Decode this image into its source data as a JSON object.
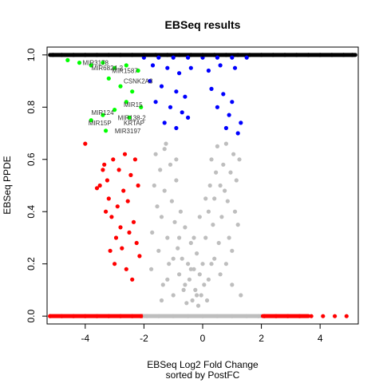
{
  "chart_data": {
    "type": "scatter",
    "title": "EBSeq results",
    "xlabel": "EBSeq Log2 Fold Change",
    "xlabel_sub": "sorted by PostFC",
    "ylabel": "EBSeq PPDE",
    "xlim": [
      -5.3,
      5.3
    ],
    "ylim": [
      -0.03,
      1.03
    ],
    "x_ticks": [
      {
        "value": -4,
        "label": "-4"
      },
      {
        "value": -2,
        "label": "-2"
      },
      {
        "value": 0,
        "label": "0"
      },
      {
        "value": 2,
        "label": "2"
      },
      {
        "value": 4,
        "label": "4"
      }
    ],
    "y_ticks": [
      {
        "value": 0.0,
        "label": "0.0"
      },
      {
        "value": 0.2,
        "label": "0.2"
      },
      {
        "value": 0.4,
        "label": "0.4"
      },
      {
        "value": 0.6,
        "label": "0.6"
      },
      {
        "value": 0.8,
        "label": "0.8"
      },
      {
        "value": 1.0,
        "label": "1.0"
      }
    ],
    "grid": false,
    "legend": "none",
    "colors": {
      "gray": "#bebebe",
      "red": "#ff0000",
      "blue": "#0000ff",
      "green": "#00ff00",
      "black": "#000000"
    },
    "series": [
      {
        "color": "gray",
        "points": [
          [
            -1.9,
            0.0
          ],
          [
            -1.5,
            0.0
          ],
          [
            -1.0,
            0.0
          ],
          [
            -0.5,
            0.0
          ],
          [
            0.0,
            0.0
          ],
          [
            0.5,
            0.0
          ],
          [
            1.0,
            0.0
          ],
          [
            1.5,
            0.0
          ],
          [
            1.9,
            0.0
          ],
          [
            -1.75,
            0.18
          ],
          [
            -1.72,
            0.32
          ],
          [
            -1.65,
            0.5
          ],
          [
            -1.6,
            0.62
          ],
          [
            -1.55,
            0.42
          ],
          [
            -1.5,
            0.25
          ],
          [
            -1.45,
            0.56
          ],
          [
            -1.4,
            0.38
          ],
          [
            -1.35,
            0.12
          ],
          [
            -1.3,
            0.48
          ],
          [
            -1.25,
            0.66
          ],
          [
            -1.2,
            0.3
          ],
          [
            -1.15,
            0.2
          ],
          [
            -1.1,
            0.58
          ],
          [
            -1.05,
            0.44
          ],
          [
            -1.0,
            0.08
          ],
          [
            -0.95,
            0.36
          ],
          [
            -0.9,
            0.52
          ],
          [
            -0.85,
            0.26
          ],
          [
            -0.8,
            0.16
          ],
          [
            -0.75,
            0.4
          ],
          [
            -0.7,
            0.22
          ],
          [
            -0.65,
            0.1
          ],
          [
            -0.6,
            0.34
          ],
          [
            -0.55,
            0.05
          ],
          [
            -0.5,
            0.2
          ],
          [
            -0.45,
            0.14
          ],
          [
            -0.4,
            0.28
          ],
          [
            -0.35,
            0.06
          ],
          [
            -0.3,
            0.18
          ],
          [
            -0.25,
            0.1
          ],
          [
            -0.2,
            0.24
          ],
          [
            -0.15,
            0.04
          ],
          [
            -0.1,
            0.16
          ],
          [
            -0.05,
            0.08
          ],
          [
            0.0,
            0.2
          ],
          [
            0.05,
            0.12
          ],
          [
            0.1,
            0.3
          ],
          [
            0.15,
            0.06
          ],
          [
            0.2,
            0.4
          ],
          [
            0.25,
            0.5
          ],
          [
            0.3,
            0.6
          ],
          [
            0.35,
            0.35
          ],
          [
            0.4,
            0.45
          ],
          [
            0.45,
            0.55
          ],
          [
            0.5,
            0.65
          ],
          [
            0.55,
            0.28
          ],
          [
            0.6,
            0.5
          ],
          [
            0.65,
            0.38
          ],
          [
            0.7,
            0.58
          ],
          [
            0.75,
            0.48
          ],
          [
            0.8,
            0.66
          ],
          [
            0.85,
            0.44
          ],
          [
            0.9,
            0.3
          ],
          [
            0.95,
            0.55
          ],
          [
            1.0,
            0.25
          ],
          [
            1.05,
            0.62
          ],
          [
            1.1,
            0.4
          ],
          [
            1.15,
            0.52
          ],
          [
            1.2,
            0.35
          ],
          [
            1.25,
            0.6
          ],
          [
            -1.2,
            0.14
          ],
          [
            -1.0,
            0.22
          ],
          [
            -0.8,
            0.3
          ],
          [
            -0.6,
            0.12
          ],
          [
            -0.4,
            0.18
          ],
          [
            -0.2,
            0.08
          ],
          [
            0.2,
            0.14
          ],
          [
            0.4,
            0.22
          ],
          [
            0.6,
            0.16
          ],
          [
            0.8,
            0.2
          ],
          [
            1.0,
            0.12
          ],
          [
            -1.4,
            0.06
          ],
          [
            1.3,
            0.08
          ],
          [
            -0.9,
            0.6
          ],
          [
            -1.3,
            0.64
          ],
          [
            0.3,
            0.2
          ],
          [
            -0.3,
            0.3
          ],
          [
            0.1,
            0.45
          ],
          [
            -0.1,
            0.38
          ]
        ]
      },
      {
        "color": "red",
        "points": [
          [
            -5.2,
            0.0
          ],
          [
            -4.8,
            0.0
          ],
          [
            -4.4,
            0.0
          ],
          [
            -4.0,
            0.0
          ],
          [
            -3.6,
            0.0
          ],
          [
            -3.2,
            0.0
          ],
          [
            -2.8,
            0.0
          ],
          [
            -2.4,
            0.0
          ],
          [
            -2.1,
            0.0
          ],
          [
            2.1,
            0.0
          ],
          [
            2.5,
            0.0
          ],
          [
            2.9,
            0.0
          ],
          [
            3.3,
            0.0
          ],
          [
            3.7,
            0.0
          ],
          [
            4.1,
            0.0
          ],
          [
            4.5,
            0.0
          ],
          [
            4.9,
            0.0
          ],
          [
            -4.0,
            0.66
          ],
          [
            -3.6,
            0.49
          ],
          [
            -3.5,
            0.5
          ],
          [
            -3.4,
            0.56
          ],
          [
            -3.35,
            0.58
          ],
          [
            -3.3,
            0.4
          ],
          [
            -3.25,
            0.52
          ],
          [
            -3.2,
            0.45
          ],
          [
            -3.15,
            0.25
          ],
          [
            -3.1,
            0.38
          ],
          [
            -3.05,
            0.6
          ],
          [
            -3.0,
            0.2
          ],
          [
            -2.95,
            0.3
          ],
          [
            -2.9,
            0.42
          ],
          [
            -2.85,
            0.56
          ],
          [
            -2.8,
            0.34
          ],
          [
            -2.75,
            0.26
          ],
          [
            -2.7,
            0.48
          ],
          [
            -2.65,
            0.62
          ],
          [
            -2.6,
            0.18
          ],
          [
            -2.55,
            0.44
          ],
          [
            -2.5,
            0.32
          ],
          [
            -2.45,
            0.54
          ],
          [
            -2.4,
            0.14
          ],
          [
            -2.35,
            0.36
          ],
          [
            -2.3,
            0.6
          ],
          [
            -2.25,
            0.28
          ],
          [
            -2.2,
            0.5
          ],
          [
            -2.15,
            0.23
          ]
        ]
      },
      {
        "color": "blue",
        "points": [
          [
            -2.0,
            0.99
          ],
          [
            -1.5,
            0.99
          ],
          [
            -1.0,
            0.99
          ],
          [
            -0.5,
            0.99
          ],
          [
            0.0,
            0.99
          ],
          [
            0.5,
            0.99
          ],
          [
            1.0,
            0.99
          ],
          [
            1.5,
            0.99
          ],
          [
            -1.7,
            0.96
          ],
          [
            -1.2,
            0.95
          ],
          [
            -0.8,
            0.93
          ],
          [
            -0.4,
            0.95
          ],
          [
            0.2,
            0.94
          ],
          [
            0.6,
            0.96
          ],
          [
            1.1,
            0.95
          ],
          [
            -1.8,
            0.9
          ],
          [
            -1.4,
            0.88
          ],
          [
            -0.9,
            0.86
          ],
          [
            -0.6,
            0.84
          ],
          [
            0.3,
            0.87
          ],
          [
            0.7,
            0.85
          ],
          [
            1.0,
            0.82
          ],
          [
            -1.6,
            0.82
          ],
          [
            -1.1,
            0.8
          ],
          [
            -0.7,
            0.78
          ],
          [
            0.5,
            0.8
          ],
          [
            0.9,
            0.77
          ],
          [
            -1.3,
            0.74
          ],
          [
            -0.9,
            0.72
          ],
          [
            0.8,
            0.72
          ],
          [
            1.2,
            0.7
          ],
          [
            -0.5,
            0.76
          ],
          [
            1.3,
            0.74
          ]
        ]
      },
      {
        "color": "green",
        "points": [
          [
            -4.6,
            0.98
          ],
          [
            -4.2,
            0.97
          ],
          [
            -3.8,
            0.96
          ],
          [
            -3.4,
            0.97
          ],
          [
            -3.0,
            0.95
          ],
          [
            -2.6,
            0.96
          ],
          [
            -2.2,
            0.94
          ],
          [
            -3.2,
            0.91
          ],
          [
            -2.8,
            0.88
          ],
          [
            -2.4,
            0.86
          ],
          [
            -2.6,
            0.82
          ],
          [
            -3.0,
            0.79
          ],
          [
            -3.4,
            0.77
          ],
          [
            -3.8,
            0.75
          ],
          [
            -3.3,
            0.71
          ],
          [
            -2.5,
            0.76
          ],
          [
            -2.1,
            0.8
          ]
        ]
      },
      {
        "color": "black",
        "points": [
          [
            -5.1,
            1.0
          ],
          [
            -4.8,
            1.0
          ],
          [
            -4.4,
            1.0
          ],
          [
            -4.0,
            1.0
          ],
          [
            -3.6,
            1.0
          ],
          [
            -3.2,
            1.0
          ],
          [
            -2.8,
            1.0
          ],
          [
            -2.4,
            1.0
          ],
          [
            -2.0,
            1.0
          ],
          [
            -1.6,
            1.0
          ],
          [
            -1.2,
            1.0
          ],
          [
            -0.8,
            1.0
          ],
          [
            -0.4,
            1.0
          ],
          [
            0.0,
            1.0
          ],
          [
            0.4,
            1.0
          ],
          [
            0.8,
            1.0
          ],
          [
            1.2,
            1.0
          ],
          [
            1.6,
            1.0
          ],
          [
            2.0,
            1.0
          ],
          [
            2.4,
            1.0
          ],
          [
            2.8,
            1.0
          ],
          [
            3.2,
            1.0
          ],
          [
            3.6,
            1.0
          ],
          [
            4.0,
            1.0
          ],
          [
            4.4,
            1.0
          ],
          [
            4.8,
            1.0
          ],
          [
            5.1,
            1.0
          ]
        ]
      }
    ],
    "annotations": [
      {
        "text": "MIR3178",
        "x": -4.2,
        "y": 0.97
      },
      {
        "text": "MIR6824-2",
        "x": -3.9,
        "y": 0.95
      },
      {
        "text": "MIR1587",
        "x": -3.2,
        "y": 0.94
      },
      {
        "text": "CSNK2A3",
        "x": -2.8,
        "y": 0.9
      },
      {
        "text": "MIR15",
        "x": -2.8,
        "y": 0.81
      },
      {
        "text": "MIR124",
        "x": -3.9,
        "y": 0.78
      },
      {
        "text": "MIR138-2",
        "x": -3.0,
        "y": 0.76
      },
      {
        "text": "MIR15P",
        "x": -4.0,
        "y": 0.74
      },
      {
        "text": "KRTAP",
        "x": -2.8,
        "y": 0.74
      },
      {
        "text": "MIR3197",
        "x": -3.1,
        "y": 0.71
      }
    ]
  }
}
